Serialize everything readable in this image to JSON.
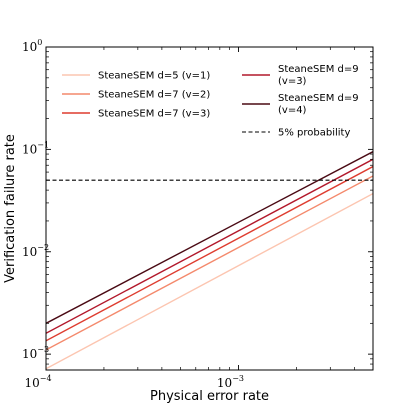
{
  "chart_data": {
    "type": "line",
    "xlabel": "Physical error rate",
    "ylabel": "Verification failure rate",
    "xscale": "log",
    "yscale": "log",
    "xlim": [
      0.0001,
      0.005
    ],
    "ylim": [
      0.0007,
      1.0
    ],
    "x_ticks": [
      {
        "value": 0.0001,
        "base": "10",
        "exp": "−4"
      },
      {
        "value": 0.001,
        "base": "10",
        "exp": "−3"
      }
    ],
    "y_ticks": [
      {
        "value": 1.0,
        "base": "10",
        "exp": "0"
      },
      {
        "value": 0.1,
        "base": "10",
        "exp": "−1"
      },
      {
        "value": 0.01,
        "base": "10",
        "exp": "−2"
      },
      {
        "value": 0.001,
        "base": "10",
        "exp": "−3"
      }
    ],
    "series": [
      {
        "name": "SteaneSEM d=5 (v=1)",
        "color": "#fcc5b0",
        "x": [
          0.0001,
          0.005
        ],
        "y": [
          0.00072,
          0.037
        ]
      },
      {
        "name": "SteaneSEM d=7 (v=2)",
        "color": "#f4896c",
        "x": [
          0.0001,
          0.005
        ],
        "y": [
          0.0011,
          0.055
        ]
      },
      {
        "name": "SteaneSEM d=7 (v=3)",
        "color": "#de3c2f",
        "x": [
          0.0001,
          0.005
        ],
        "y": [
          0.00135,
          0.068
        ]
      },
      {
        "name": "SteaneSEM d=9 (v=3)",
        "color": "#b2182b",
        "x": [
          0.0001,
          0.005
        ],
        "y": [
          0.0016,
          0.08
        ]
      },
      {
        "name": "SteaneSEM d=9 (v=4)",
        "color": "#4a0a14",
        "x": [
          0.0001,
          0.005
        ],
        "y": [
          0.002,
          0.095
        ]
      }
    ],
    "reference_line": {
      "name": "5% probability",
      "y": 0.05,
      "style": "dashed",
      "color": "#000000"
    },
    "legend_position": "upper-left, two columns",
    "grid": false
  }
}
